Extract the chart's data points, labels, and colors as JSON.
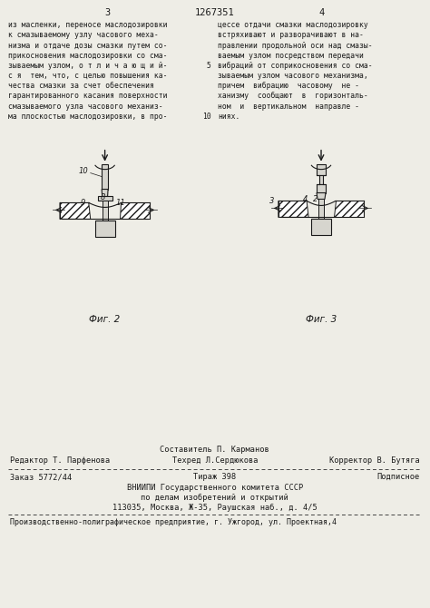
{
  "bg_color": "#f5f5f0",
  "page_color": "#eeede6",
  "header_page_left": "3",
  "header_center": "1267351",
  "header_page_right": "4",
  "col_left_text": [
    "из масленки, переносе маслодозировки",
    "к смазываемому узлу часового меха-",
    "низма и отдаче дозы смазки путем со-",
    "прикосновения маслодозировки со сма-",
    "зываемым узлом, о т л и ч а ю щ и й-",
    "с я  тем, что, с целью повышения ка-",
    "чества смазки за счет обеспечения",
    "гарантированного касания поверхности",
    "смазываемого узла часового механиз-",
    "ма плоскостью маслодозировки, в про-"
  ],
  "col_right_text": [
    "цессе отдачи смазки маслодозировку",
    "встряхивают и разворачивают в на-",
    "правлении продольной оси над смазы-",
    "ваемым узлом посредством передачи",
    "вибраций от соприкосновения со сма-",
    "зываемым узлом часового механизма,",
    "причем  вибрацию  часовому  не -",
    "ханизму  сообщают  в  горизонталь-",
    "ном  и  вертикальном  направле -",
    "ниях."
  ],
  "line_numbers": {
    "4": "5",
    "9": "10"
  },
  "fig2_label": "Фиг. 2",
  "fig3_label": "Фиг. 3",
  "footer_line1_center": "Составитель П. Карманов",
  "footer_line2_left": "Редактор Т. Парфенова",
  "footer_line2_center": "Техред Л.Сердюкова",
  "footer_line2_right": "Корректор В. Бутяга",
  "footer_line3_left": "Заказ 5772/44",
  "footer_line3_center": "Тираж 398",
  "footer_line3_right": "Подписное",
  "footer_line4": "ВНИИПИ Государственного комитета СССР",
  "footer_line5": "по делам изобретений и открытий",
  "footer_line6": "113035, Москва, Ж-35, Раушская наб., д. 4/5",
  "footer_bottom": "Производственно-полиграфическое предприятие, г. Ужгород, ул. Проектная,4",
  "text_color": "#1a1a1a",
  "line_color": "#444444",
  "hatch_color": "#555555",
  "fig_facecolor": "#d6d5ce",
  "fig_bg": "#c8c7bf"
}
